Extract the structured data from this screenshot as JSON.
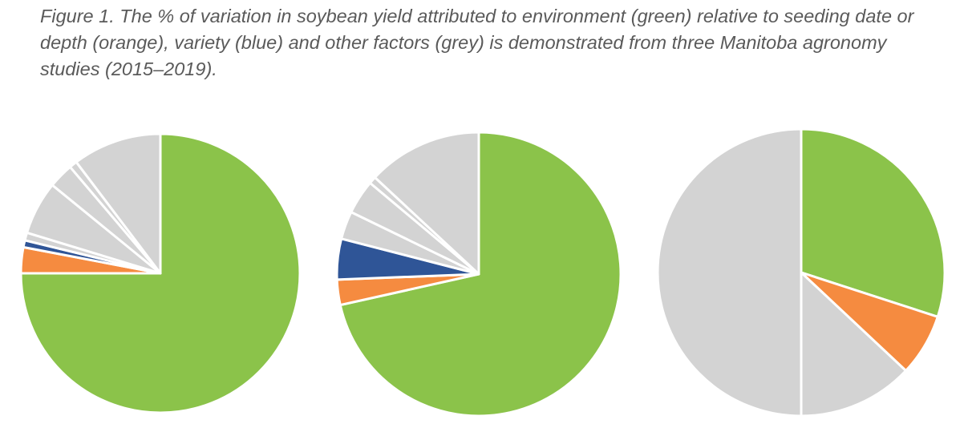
{
  "caption": "Figure 1. The % of variation in soybean yield attributed to environment (green) relative to seeding date or depth (orange), variety (blue) and other factors (grey) is demonstrated from three Manitoba agronomy studies (2015–2019).",
  "colors": {
    "environment": "#8bc34a",
    "seeding": "#f58b40",
    "variety": "#2f5597",
    "other": "#d3d3d3",
    "border": "#ffffff"
  },
  "chart_data": [
    {
      "type": "pie",
      "title": "",
      "slices": [
        {
          "label": "environment",
          "category": "environment",
          "value": 75.0
        },
        {
          "label": "seeding date or depth",
          "category": "seeding",
          "value": 3.0
        },
        {
          "label": "variety",
          "category": "variety",
          "value": 0.8
        },
        {
          "label": "other factor",
          "category": "other",
          "value": 0.9
        },
        {
          "label": "other factor",
          "category": "other",
          "value": 6.2
        },
        {
          "label": "other factor",
          "category": "other",
          "value": 2.9
        },
        {
          "label": "other factor",
          "category": "other",
          "value": 0.9
        },
        {
          "label": "other factor",
          "category": "other",
          "value": 10.3
        }
      ]
    },
    {
      "type": "pie",
      "title": "",
      "slices": [
        {
          "label": "environment",
          "category": "environment",
          "value": 69.5
        },
        {
          "label": "seeding date or depth",
          "category": "seeding",
          "value": 2.8
        },
        {
          "label": "variety",
          "category": "variety",
          "value": 4.5
        },
        {
          "label": "other factor",
          "category": "other",
          "value": 3.1
        },
        {
          "label": "other factor",
          "category": "other",
          "value": 3.8
        },
        {
          "label": "other factor",
          "category": "other",
          "value": 0.8
        },
        {
          "label": "other factor",
          "category": "other",
          "value": 12.7
        }
      ]
    },
    {
      "type": "pie",
      "title": "",
      "slices": [
        {
          "label": "environment",
          "category": "environment",
          "value": 30.0
        },
        {
          "label": "seeding date or depth",
          "category": "seeding",
          "value": 7.0
        },
        {
          "label": "other factor",
          "category": "other",
          "value": 13.0
        },
        {
          "label": "other factor",
          "category": "other",
          "value": 50.0
        }
      ]
    }
  ]
}
